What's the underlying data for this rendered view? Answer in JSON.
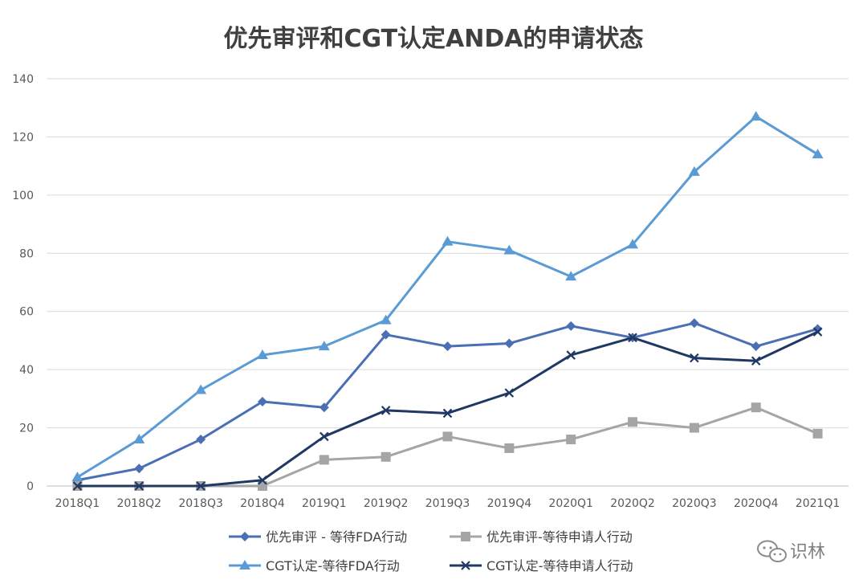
{
  "chart_data": {
    "type": "line",
    "title": "优先审评和CGT认定ANDA的申请状态",
    "xlabel": "",
    "ylabel": "",
    "ylim": [
      0,
      140
    ],
    "yticks": [
      0,
      20,
      40,
      60,
      80,
      100,
      120,
      140
    ],
    "grid": true,
    "legend_position": "bottom",
    "categories": [
      "2018Q1",
      "2018Q2",
      "2018Q3",
      "2018Q4",
      "2019Q1",
      "2019Q2",
      "2019Q3",
      "2019Q4",
      "2020Q1",
      "2020Q2",
      "2020Q3",
      "2020Q4",
      "2021Q1"
    ],
    "series": [
      {
        "name": "优先审评 - 等待FDA行动",
        "color": "#4a6fb5",
        "marker": "diamond",
        "values": [
          2,
          6,
          16,
          29,
          27,
          52,
          48,
          49,
          55,
          51,
          56,
          48,
          54
        ]
      },
      {
        "name": "优先审评-等待申请人行动",
        "color": "#a5a5a5",
        "marker": "square",
        "values": [
          0,
          0,
          0,
          0,
          9,
          10,
          17,
          13,
          16,
          22,
          20,
          27,
          18
        ]
      },
      {
        "name": "CGT认定-等待FDA行动",
        "color": "#5b9bd5",
        "marker": "triangle",
        "values": [
          3,
          16,
          33,
          45,
          48,
          57,
          84,
          81,
          72,
          83,
          108,
          127,
          114
        ]
      },
      {
        "name": "CGT认定-等待申请人行动",
        "color": "#1f3864",
        "marker": "x",
        "values": [
          0,
          0,
          0,
          2,
          17,
          26,
          25,
          32,
          45,
          51,
          44,
          43,
          53
        ]
      }
    ]
  },
  "watermark": {
    "text": "识林",
    "icon": "wechat-icon"
  }
}
